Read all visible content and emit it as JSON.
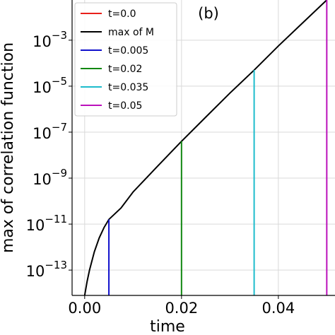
{
  "chart_data": {
    "type": "line",
    "annotation": "(b)",
    "xlabel": "time",
    "ylabel": "max of correlation function",
    "xlim": [
      -0.0026,
      0.0517
    ],
    "xticks": [
      {
        "value": 0,
        "label": "0.00"
      },
      {
        "value": 0.02,
        "label": "0.02"
      },
      {
        "value": 0.04,
        "label": "0.04"
      }
    ],
    "ylim": [
      7.9e-15,
      0.056
    ],
    "yscale": "log",
    "yticks": [
      {
        "value": 1e-13,
        "label": "10−13"
      },
      {
        "value": 1e-11,
        "label": "10−11"
      },
      {
        "value": 1e-09,
        "label": "10−9"
      },
      {
        "value": 1e-07,
        "label": "10−7"
      },
      {
        "value": 1e-05,
        "label": "10−5"
      },
      {
        "value": 0.001,
        "label": "10−3"
      }
    ],
    "grid": true,
    "legend": "upper left",
    "series": [
      {
        "name": "t=0.0",
        "color": "#e8201a",
        "x": [
          0
        ],
        "values": [
          7.9e-15
        ]
      },
      {
        "name": "max of M",
        "color": "#000000",
        "x": [
          0,
          0.0005,
          0.001,
          0.002,
          0.003,
          0.004,
          0.005,
          0.0075,
          0.01,
          0.015,
          0.02,
          0.025,
          0.03,
          0.035,
          0.04,
          0.045,
          0.05
        ],
        "values": [
          7.9e-15,
          3.2e-14,
          1e-13,
          6.3e-13,
          2.5e-12,
          7.1e-12,
          1.6e-11,
          5e-11,
          2.5e-10,
          3.2e-09,
          4e-08,
          4.5e-07,
          5e-06,
          5e-05,
          0.00056,
          0.0056,
          0.056
        ]
      },
      {
        "name": "t=0.005",
        "color": "#1010cc",
        "x": [
          0.005
        ],
        "values": [
          1.6e-11
        ]
      },
      {
        "name": "t=0.02",
        "color": "#118811",
        "x": [
          0.02
        ],
        "values": [
          4e-08
        ]
      },
      {
        "name": "t=0.035",
        "color": "#1ebccc",
        "x": [
          0.035
        ],
        "values": [
          5e-05
        ]
      },
      {
        "name": "t=0.05",
        "color": "#bb11bb",
        "x": [
          0.05
        ],
        "values": [
          0.056
        ]
      }
    ]
  }
}
